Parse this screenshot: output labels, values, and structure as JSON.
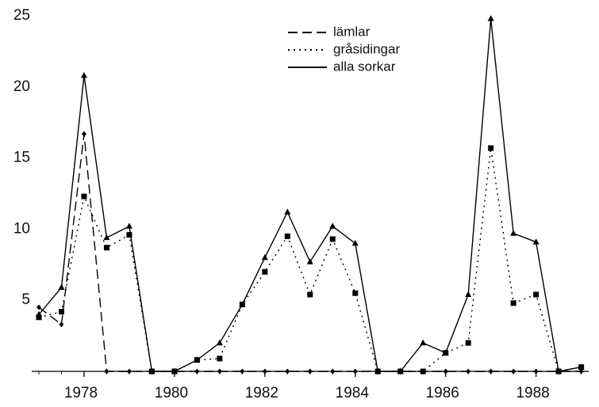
{
  "chart_data": {
    "type": "line",
    "x": [
      1977,
      1977.5,
      1978,
      1978.5,
      1979,
      1979.5,
      1980,
      1980.5,
      1981,
      1981.5,
      1982,
      1982.5,
      1983,
      1983.5,
      1984,
      1984.5,
      1985,
      1985.5,
      1986,
      1986.5,
      1987,
      1987.5,
      1988,
      1988.5,
      1989
    ],
    "series": [
      {
        "name": "lämlar",
        "color": "#000000",
        "dash": "12 6",
        "marker": "diamond",
        "values": [
          4.5,
          3.3,
          16.7,
          0,
          0,
          0,
          0,
          0,
          0,
          0,
          0,
          0,
          0,
          0,
          0,
          0,
          0,
          0,
          0,
          0,
          0,
          0,
          0,
          0,
          0
        ]
      },
      {
        "name": "gråsidingar",
        "color": "#000000",
        "dash": "2 5",
        "marker": "square",
        "values": [
          3.8,
          4.2,
          12.3,
          8.7,
          9.6,
          0,
          0,
          0.8,
          0.9,
          4.7,
          7.0,
          9.5,
          5.4,
          9.3,
          5.5,
          0,
          0,
          0,
          1.3,
          2.0,
          15.7,
          4.8,
          5.4,
          0,
          0.3
        ]
      },
      {
        "name": "alla sorkar",
        "color": "#000000",
        "dash": "none",
        "marker": "triangle",
        "values": [
          4.0,
          5.9,
          20.8,
          9.4,
          10.2,
          0,
          0,
          0.8,
          2.0,
          4.7,
          8.0,
          11.2,
          7.7,
          10.2,
          9.0,
          0,
          0,
          2.0,
          1.3,
          5.4,
          24.8,
          9.7,
          9.1,
          0,
          0.3
        ]
      }
    ],
    "xlim": [
      1977,
      1989.2
    ],
    "xticks": [
      1978,
      1980,
      1982,
      1984,
      1986,
      1988
    ],
    "ylim": [
      0,
      25
    ],
    "yticks": [
      5,
      10,
      15,
      20,
      25
    ],
    "grid": false
  }
}
